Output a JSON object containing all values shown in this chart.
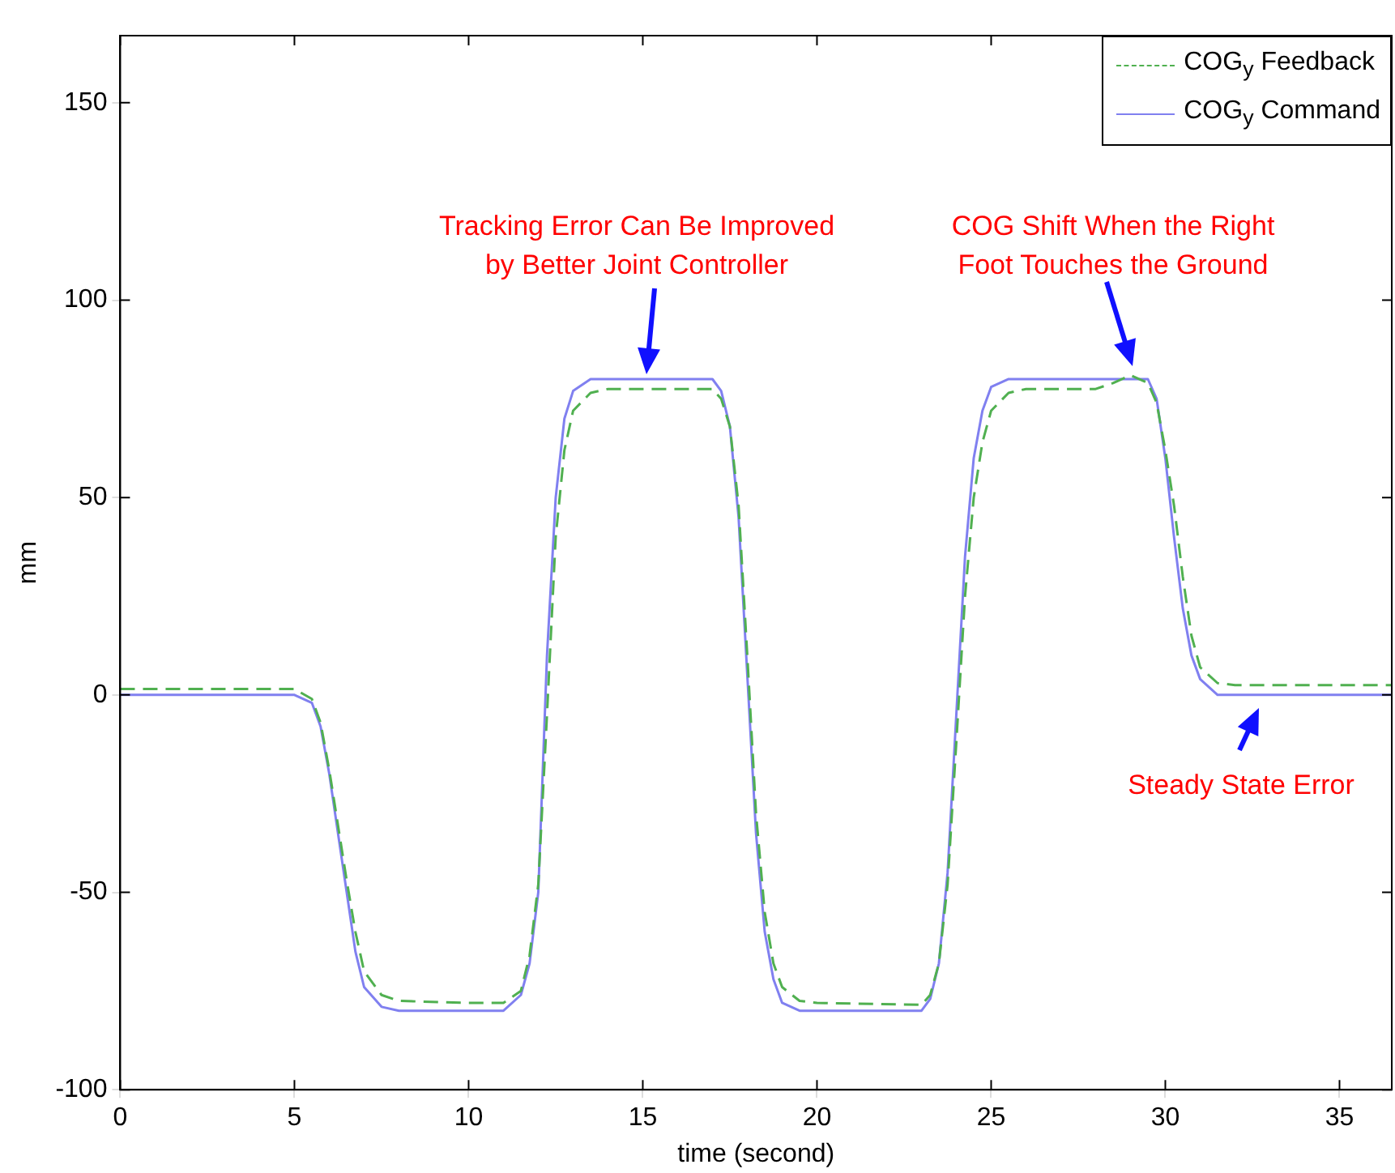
{
  "chart_data": {
    "type": "line",
    "xlabel": "time (second)",
    "ylabel": "mm",
    "xlim": [
      0,
      36.5
    ],
    "ylim": [
      -100,
      167
    ],
    "xticks": [
      0,
      5,
      10,
      15,
      20,
      25,
      30,
      35
    ],
    "yticks": [
      -100,
      -50,
      0,
      50,
      100,
      150
    ],
    "grid": false,
    "legend": "top right",
    "marker": "none",
    "series": [
      {
        "name": "COG$_{y}$ Feedback",
        "color": "#50b050",
        "line_style": "dashed",
        "x": [
          0,
          5,
          5.5,
          5.75,
          6,
          6.25,
          6.5,
          6.75,
          7,
          7.5,
          8,
          10,
          11,
          11.5,
          11.75,
          12,
          12.25,
          12.5,
          12.75,
          13,
          13.5,
          14,
          17,
          17.25,
          17.5,
          17.75,
          18,
          18.25,
          18.5,
          18.75,
          19,
          19.5,
          20,
          23,
          23.25,
          23.5,
          23.75,
          24,
          24.25,
          24.5,
          24.75,
          25,
          25.5,
          26,
          28,
          28.5,
          29,
          29.5,
          29.75,
          30,
          30.25,
          30.5,
          30.75,
          31,
          31.5,
          32,
          36.5
        ],
        "values": [
          1.5,
          1.5,
          -1,
          -7,
          -19,
          -33,
          -47,
          -60,
          -70,
          -76,
          -77.5,
          -78,
          -78,
          -75,
          -66,
          -48,
          -5,
          40,
          62,
          72,
          76.5,
          77.5,
          77.5,
          75,
          68,
          48,
          10,
          -30,
          -55,
          -68,
          -74,
          -77.5,
          -78,
          -78.5,
          -76,
          -68,
          -48,
          -12,
          25,
          50,
          64,
          72,
          76.5,
          77.5,
          77.5,
          79,
          81,
          79,
          74,
          62,
          48,
          30,
          15,
          7,
          3,
          2.5,
          2.5
        ]
      },
      {
        "name": "COG$_{y}$ Command",
        "color": "#8080f0",
        "line_style": "solid",
        "x": [
          0,
          5,
          5.5,
          5.75,
          6,
          6.25,
          6.5,
          6.75,
          7,
          7.5,
          8,
          11,
          11.5,
          11.75,
          12,
          12.25,
          12.5,
          12.75,
          13,
          13.5,
          17,
          17.25,
          17.5,
          17.75,
          18,
          18.25,
          18.5,
          18.75,
          19,
          19.5,
          23,
          23.25,
          23.5,
          23.75,
          24,
          24.25,
          24.5,
          24.75,
          25,
          25.5,
          29.5,
          29.75,
          30,
          30.25,
          30.5,
          30.75,
          31,
          31.5,
          36.5
        ],
        "values": [
          0,
          0,
          -2,
          -8,
          -20,
          -35,
          -50,
          -65,
          -74,
          -79,
          -80,
          -80,
          -76,
          -68,
          -50,
          10,
          50,
          70,
          77,
          80,
          80,
          77,
          68,
          45,
          5,
          -35,
          -60,
          -72,
          -78,
          -80,
          -80,
          -77,
          -68,
          -45,
          -5,
          35,
          60,
          72,
          78,
          80,
          80,
          75,
          60,
          40,
          22,
          10,
          4,
          0,
          0
        ]
      }
    ],
    "annotations": [
      "Tracking Error Can Be Improved\nby Better Joint Controller",
      "COG Shift When the Right\nFoot Touches the Ground",
      "Steady State Error"
    ]
  }
}
